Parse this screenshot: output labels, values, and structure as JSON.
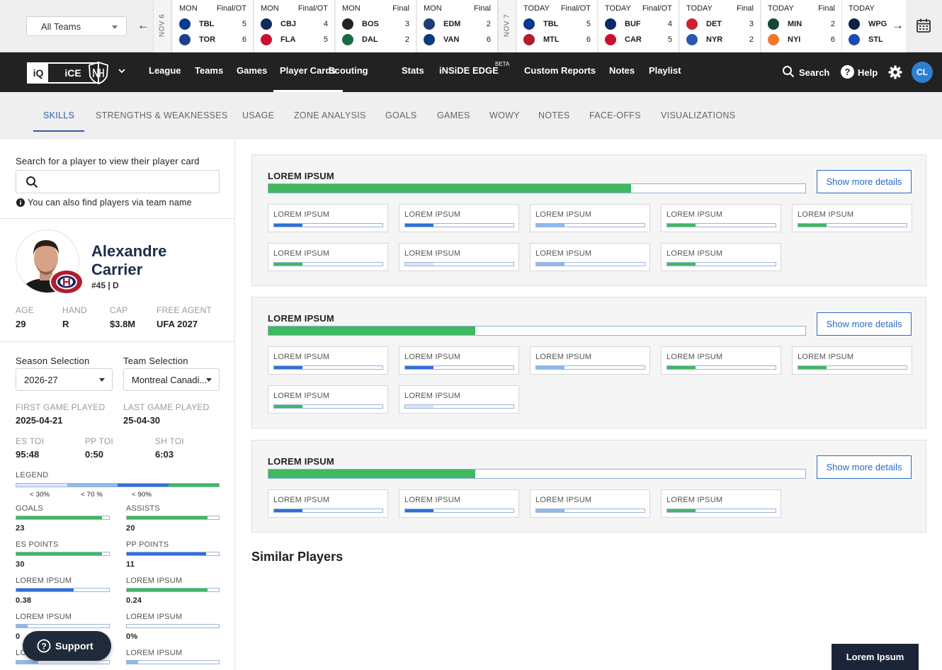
{
  "scorebar": {
    "team_filter": "All Teams",
    "day_labels": [
      "NOV 6",
      "NOV 7"
    ],
    "games": [
      {
        "day": "MON",
        "status": "Final/OT",
        "t1": "TBL",
        "s1": "5",
        "t2": "TOR",
        "s2": "6",
        "c1": "#0b3a8c",
        "c2": "#1d3f8c"
      },
      {
        "day": "MON",
        "status": "Final/OT",
        "t1": "CBJ",
        "s1": "4",
        "t2": "FLA",
        "s2": "5",
        "c1": "#0f2a5c",
        "c2": "#c8102e"
      },
      {
        "day": "MON",
        "status": "Final",
        "t1": "BOS",
        "s1": "3",
        "t2": "DAL",
        "s2": "2",
        "c1": "#222222",
        "c2": "#1a6b45"
      },
      {
        "day": "MON",
        "status": "Final",
        "t1": "EDM",
        "s1": "2",
        "t2": "VAN",
        "s2": "6",
        "c1": "#1d3d7a",
        "c2": "#0a3b7a"
      },
      {
        "day": "TODAY",
        "status": "Final/OT",
        "t1": "TBL",
        "s1": "5",
        "t2": "MTL",
        "s2": "6",
        "c1": "#0b3a8c",
        "c2": "#b01d2e"
      },
      {
        "day": "TODAY",
        "status": "Final/OT",
        "t1": "BUF",
        "s1": "4",
        "t2": "CAR",
        "s2": "5",
        "c1": "#0b2a6b",
        "c2": "#c8102e"
      },
      {
        "day": "TODAY",
        "status": "Final",
        "t1": "DET",
        "s1": "3",
        "t2": "NYR",
        "s2": "2",
        "c1": "#d0202e",
        "c2": "#2a56b0"
      },
      {
        "day": "TODAY",
        "status": "Final",
        "t1": "MIN",
        "s1": "2",
        "t2": "NYI",
        "s2": "6",
        "c1": "#154734",
        "c2": "#f0772a"
      },
      {
        "day": "TODAY",
        "status": "",
        "t1": "WPG",
        "s1": "",
        "t2": "STL",
        "s2": "",
        "c1": "#0c2344",
        "c2": "#1e48b3"
      }
    ]
  },
  "nav": {
    "brand_left": "iQ",
    "brand_right": "iCE",
    "items": [
      "League",
      "Teams",
      "Games",
      "Player Cards",
      "Scouting",
      "Stats",
      "iNSiDE EDGE",
      "Custom Reports",
      "Notes",
      "Playlist"
    ],
    "active": "Player Cards",
    "beta": "BETA",
    "search": "Search",
    "help": "Help",
    "avatar": "CL"
  },
  "tabs": {
    "items": [
      "SKILLS",
      "STRENGTHS & WEAKNESSES",
      "USAGE",
      "ZONE ANALYSIS",
      "GOALS",
      "GAMES",
      "WOWY",
      "NOTES",
      "FACE-OFFS",
      "VISUALIZATIONS"
    ],
    "active": "SKILLS"
  },
  "search": {
    "label": "Search for a player to view their player card",
    "placeholder": "",
    "hint": "You can also find players via team name"
  },
  "player": {
    "first": "Alexandre",
    "last": "Carrier",
    "number_pos": "#45 | D",
    "bio": [
      {
        "label": "AGE",
        "value": "29"
      },
      {
        "label": "HAND",
        "value": "R"
      },
      {
        "label": "CAP",
        "value": "$3.8M"
      },
      {
        "label": "FREE AGENT",
        "value": "UFA 2027"
      }
    ]
  },
  "selection": {
    "season_label": "Season Selection",
    "season_value": "2026-27",
    "team_label": "Team Selection",
    "team_value": "Montreal Canadi..."
  },
  "played": {
    "first_label": "FIRST GAME PLAYED",
    "first_value": "2025-04-21",
    "last_label": "LAST GAME PLAYED",
    "last_value": "25-04-30"
  },
  "toi": [
    {
      "label": "ES TOI",
      "value": "95:48"
    },
    {
      "label": "PP TOI",
      "value": "0:50"
    },
    {
      "label": "SH TOI",
      "value": "6:03"
    }
  ],
  "legend": {
    "label": "LEGEND",
    "marks": [
      "< 30%",
      "< 70 %",
      "< 90%"
    ]
  },
  "stats": [
    {
      "label": "GOALS",
      "value": "23",
      "fill": 0.92,
      "color": "green"
    },
    {
      "label": "ASSISTS",
      "value": "20",
      "fill": 0.88,
      "color": "green"
    },
    {
      "label": "ES POINTS",
      "value": "30",
      "fill": 0.92,
      "color": "green"
    },
    {
      "label": "PP POINTS",
      "value": "11",
      "fill": 0.86,
      "color": "blue"
    },
    {
      "label": "LOREM IPSUM",
      "value": "0.38",
      "fill": 0.62,
      "color": "blue"
    },
    {
      "label": "LOREM IPSUM",
      "value": "0.24",
      "fill": 0.88,
      "color": "green"
    },
    {
      "label": "LOREM IPSUM",
      "value": "0",
      "fill": 0.12,
      "color": "light"
    },
    {
      "label": "LOREM IPSUM",
      "value": "0%",
      "fill": 0.0,
      "color": "light"
    },
    {
      "label": "LOREM IPSUM",
      "value": "",
      "fill": 0.24,
      "color": "light"
    },
    {
      "label": "LOREM IPSUM",
      "value": "",
      "fill": 0.12,
      "color": "light"
    }
  ],
  "panels": [
    {
      "title": "LOREM IPSUM",
      "fill": 0.675,
      "button": "Show more details",
      "metrics": [
        {
          "label": "LOREM IPSUM",
          "fill": 0.26,
          "color": "blue"
        },
        {
          "label": "LOREM IPSUM",
          "fill": 0.26,
          "color": "blue"
        },
        {
          "label": "LOREM IPSUM",
          "fill": 0.26,
          "color": "light"
        },
        {
          "label": "LOREM IPSUM",
          "fill": 0.26,
          "color": "green"
        },
        {
          "label": "LOREM IPSUM",
          "fill": 0.26,
          "color": "green"
        },
        {
          "label": "LOREM IPSUM",
          "fill": 0.26,
          "color": "green"
        },
        {
          "label": "LOREM IPSUM",
          "fill": 0.26,
          "color": "verylight"
        },
        {
          "label": "LOREM IPSUM",
          "fill": 0.26,
          "color": "light"
        },
        {
          "label": "LOREM IPSUM",
          "fill": 0.26,
          "color": "green"
        }
      ]
    },
    {
      "title": "LOREM IPSUM",
      "fill": 0.385,
      "button": "Show more details",
      "metrics": [
        {
          "label": "LOREM IPSUM",
          "fill": 0.26,
          "color": "blue"
        },
        {
          "label": "LOREM IPSUM",
          "fill": 0.26,
          "color": "blue"
        },
        {
          "label": "LOREM IPSUM",
          "fill": 0.26,
          "color": "light"
        },
        {
          "label": "LOREM IPSUM",
          "fill": 0.26,
          "color": "green"
        },
        {
          "label": "LOREM IPSUM",
          "fill": 0.26,
          "color": "green"
        },
        {
          "label": "LOREM IPSUM",
          "fill": 0.26,
          "color": "green"
        },
        {
          "label": "LOREM IPSUM",
          "fill": 0.26,
          "color": "verylight"
        }
      ]
    },
    {
      "title": "LOREM IPSUM",
      "fill": 0.385,
      "button": "Show more details",
      "metrics": [
        {
          "label": "LOREM IPSUM",
          "fill": 0.26,
          "color": "blue"
        },
        {
          "label": "LOREM IPSUM",
          "fill": 0.26,
          "color": "blue"
        },
        {
          "label": "LOREM IPSUM",
          "fill": 0.26,
          "color": "light"
        },
        {
          "label": "LOREM IPSUM",
          "fill": 0.26,
          "color": "green"
        }
      ]
    }
  ],
  "similar_title": "Similar Players",
  "support": "Support",
  "footer_button": "Lorem Ipsum"
}
